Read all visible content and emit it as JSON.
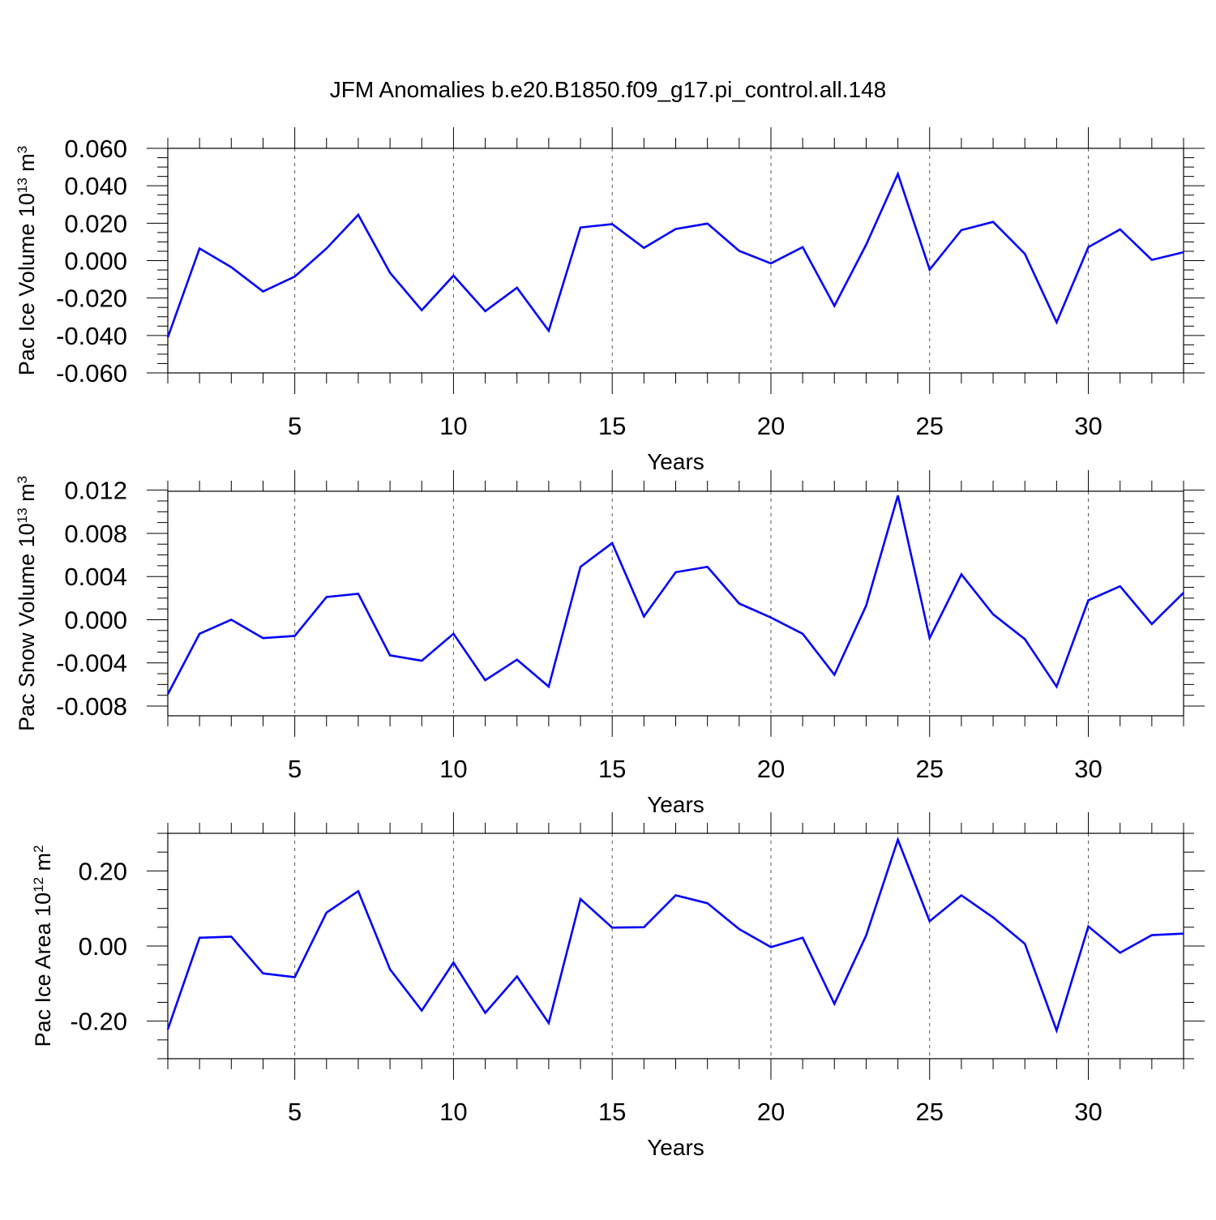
{
  "title": "JFM Anomalies b.e20.B1850.f09_g17.pi_control.all.148",
  "colors": {
    "series": "#0000ff",
    "axes": "#000000",
    "grid": "#555555"
  },
  "chart_data": [
    {
      "type": "line",
      "name": "panel-ice-volume",
      "ylabel_parts": {
        "prefix": "Pac Ice Volume 10",
        "exp": "13",
        "unit": " m",
        "unit_exp": "3"
      },
      "xlabel": "Years",
      "xlim": [
        1,
        33
      ],
      "ylim": [
        -0.06,
        0.06
      ],
      "x_ticks": [
        5,
        10,
        15,
        20,
        25,
        30
      ],
      "x_tick_labels": [
        "5",
        "10",
        "15",
        "20",
        "25",
        "30"
      ],
      "y_ticks": [
        -0.06,
        -0.04,
        -0.02,
        0.0,
        0.02,
        0.04,
        0.06
      ],
      "y_tick_labels": [
        "-0.060",
        "-0.040",
        "-0.020",
        "0.000",
        "0.020",
        "0.040",
        "0.060"
      ],
      "y_minor_step": 0.005,
      "grid": "vertical-dashed",
      "x": [
        1,
        2,
        3,
        4,
        5,
        6,
        7,
        8,
        9,
        10,
        11,
        12,
        13,
        14,
        15,
        16,
        17,
        18,
        19,
        20,
        21,
        22,
        23,
        24,
        25,
        26,
        27,
        28,
        29,
        30,
        31,
        32,
        33
      ],
      "values": [
        -0.041,
        0.0065,
        -0.0035,
        -0.0165,
        -0.0085,
        0.0065,
        0.0245,
        -0.0065,
        -0.0265,
        -0.008,
        -0.027,
        -0.0145,
        -0.0375,
        0.0177,
        0.0195,
        0.0068,
        0.0169,
        0.0198,
        0.0052,
        -0.0015,
        0.0072,
        -0.0242,
        0.0085,
        0.0463,
        -0.0048,
        0.0163,
        0.0207,
        0.0036,
        -0.033,
        0.0072,
        0.0167,
        0.0004,
        0.0045
      ]
    },
    {
      "type": "line",
      "name": "panel-snow-volume",
      "ylabel_parts": {
        "prefix": "Pac Snow Volume 10",
        "exp": "13",
        "unit": " m",
        "unit_exp": "3"
      },
      "xlabel": "Years",
      "xlim": [
        1,
        33
      ],
      "ylim": [
        -0.0089,
        0.0119
      ],
      "x_ticks": [
        5,
        10,
        15,
        20,
        25,
        30
      ],
      "x_tick_labels": [
        "5",
        "10",
        "15",
        "20",
        "25",
        "30"
      ],
      "y_ticks": [
        -0.008,
        -0.004,
        0.0,
        0.004,
        0.008,
        0.012
      ],
      "y_tick_labels": [
        "-0.008",
        "-0.004",
        "0.000",
        "0.004",
        "0.008",
        "0.012"
      ],
      "y_minor_step": 0.001,
      "grid": "vertical-dashed",
      "x": [
        1,
        2,
        3,
        4,
        5,
        6,
        7,
        8,
        9,
        10,
        11,
        12,
        13,
        14,
        15,
        16,
        17,
        18,
        19,
        20,
        21,
        22,
        23,
        24,
        25,
        26,
        27,
        28,
        29,
        30,
        31,
        32,
        33
      ],
      "values": [
        -0.0069,
        -0.0013,
        0.0,
        -0.0017,
        -0.0015,
        0.0021,
        0.0024,
        -0.0033,
        -0.0038,
        -0.0013,
        -0.0056,
        -0.0037,
        -0.0062,
        0.0049,
        0.0071,
        0.0003,
        0.0044,
        0.0049,
        0.0015,
        0.0002,
        -0.0013,
        -0.0051,
        0.0013,
        0.0115,
        -0.0017,
        0.0042,
        0.0005,
        -0.0018,
        -0.0062,
        0.0018,
        0.0031,
        -0.0004,
        0.0025
      ]
    },
    {
      "type": "line",
      "name": "panel-ice-area",
      "ylabel_parts": {
        "prefix": "Pac Ice Area 10",
        "exp": "12",
        "unit": " m",
        "unit_exp": "2"
      },
      "xlabel": "Years",
      "xlim": [
        1,
        33
      ],
      "ylim": [
        -0.3,
        0.3
      ],
      "x_ticks": [
        5,
        10,
        15,
        20,
        25,
        30
      ],
      "x_tick_labels": [
        "5",
        "10",
        "15",
        "20",
        "25",
        "30"
      ],
      "y_ticks": [
        -0.2,
        0.0,
        0.2
      ],
      "y_tick_labels": [
        "-0.20",
        "0.00",
        "0.20"
      ],
      "y_minor_step": 0.05,
      "grid": "vertical-dashed",
      "x": [
        1,
        2,
        3,
        4,
        5,
        6,
        7,
        8,
        9,
        10,
        11,
        12,
        13,
        14,
        15,
        16,
        17,
        18,
        19,
        20,
        21,
        22,
        23,
        24,
        25,
        26,
        27,
        28,
        29,
        30,
        31,
        32,
        33
      ],
      "values": [
        -0.222,
        0.022,
        0.025,
        -0.073,
        -0.083,
        0.089,
        0.146,
        -0.062,
        -0.172,
        -0.044,
        -0.178,
        -0.081,
        -0.205,
        0.125,
        0.049,
        0.05,
        0.135,
        0.114,
        0.045,
        -0.003,
        0.022,
        -0.154,
        0.028,
        0.283,
        0.066,
        0.135,
        0.076,
        0.006,
        -0.225,
        0.052,
        -0.018,
        0.029,
        0.033
      ]
    }
  ]
}
